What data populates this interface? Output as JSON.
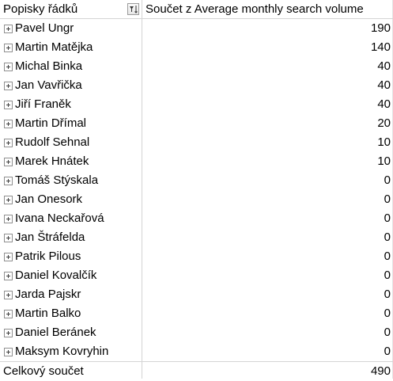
{
  "pivot": {
    "row_labels_header": "Popisky řádků",
    "value_header": "Součet z Average monthly search volume",
    "rows": [
      {
        "name": "Pavel Ungr",
        "value": "190"
      },
      {
        "name": "Martin Matějka",
        "value": "140"
      },
      {
        "name": "Michal Binka",
        "value": "40"
      },
      {
        "name": "Jan Vavřička",
        "value": "40"
      },
      {
        "name": "Jiří Franěk",
        "value": "40"
      },
      {
        "name": "Martin Dřímal",
        "value": "20"
      },
      {
        "name": "Rudolf Sehnal",
        "value": "10"
      },
      {
        "name": "Marek Hnátek",
        "value": "10"
      },
      {
        "name": "Tomáš Stýskala",
        "value": "0"
      },
      {
        "name": "Jan Onesork",
        "value": "0"
      },
      {
        "name": "Ivana Neckařová",
        "value": "0"
      },
      {
        "name": "Jan Štráfelda",
        "value": "0"
      },
      {
        "name": "Patrik Pilous",
        "value": "0"
      },
      {
        "name": "Daniel Kovalčík",
        "value": "0"
      },
      {
        "name": "Jarda Pajskr",
        "value": "0"
      },
      {
        "name": "Martin Balko",
        "value": "0"
      },
      {
        "name": "Daniel Beránek",
        "value": "0"
      },
      {
        "name": "Maksym Kovryhin",
        "value": "0"
      }
    ],
    "grand_total_label": "Celkový součet",
    "grand_total_value": "490"
  },
  "icons": {
    "expand": "plus-square-icon",
    "filter": "filter-sort-icon"
  }
}
